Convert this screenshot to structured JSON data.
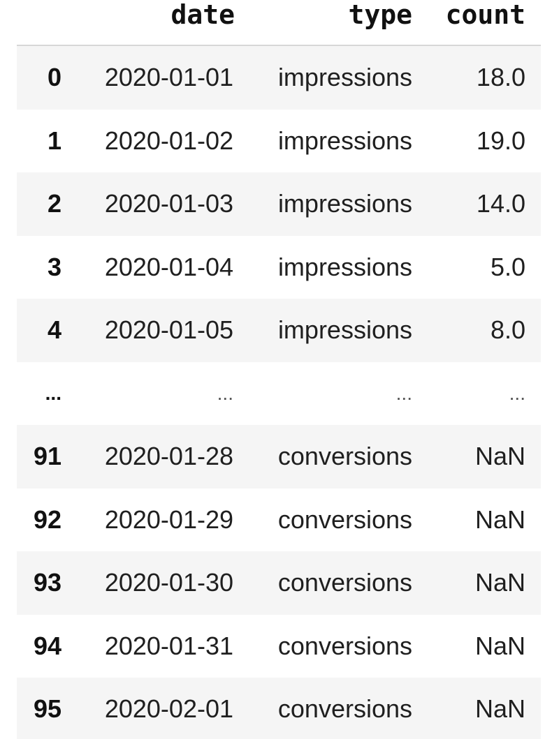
{
  "table": {
    "columns": {
      "index": "",
      "date": "date",
      "type": "type",
      "count": "count"
    },
    "rows": [
      {
        "index": "0",
        "date": "2020-01-01",
        "type": "impressions",
        "count": "18.0"
      },
      {
        "index": "1",
        "date": "2020-01-02",
        "type": "impressions",
        "count": "19.0"
      },
      {
        "index": "2",
        "date": "2020-01-03",
        "type": "impressions",
        "count": "14.0"
      },
      {
        "index": "3",
        "date": "2020-01-04",
        "type": "impressions",
        "count": "5.0"
      },
      {
        "index": "4",
        "date": "2020-01-05",
        "type": "impressions",
        "count": "8.0"
      },
      {
        "index": "...",
        "date": "...",
        "type": "...",
        "count": "..."
      },
      {
        "index": "91",
        "date": "2020-01-28",
        "type": "conversions",
        "count": "NaN"
      },
      {
        "index": "92",
        "date": "2020-01-29",
        "type": "conversions",
        "count": "NaN"
      },
      {
        "index": "93",
        "date": "2020-01-30",
        "type": "conversions",
        "count": "NaN"
      },
      {
        "index": "94",
        "date": "2020-01-31",
        "type": "conversions",
        "count": "NaN"
      },
      {
        "index": "95",
        "date": "2020-02-01",
        "type": "conversions",
        "count": "NaN"
      }
    ]
  },
  "colors": {
    "stripe": "#f5f5f5",
    "header_rule": "#d7d7d7",
    "text": "#1f1f1f"
  }
}
